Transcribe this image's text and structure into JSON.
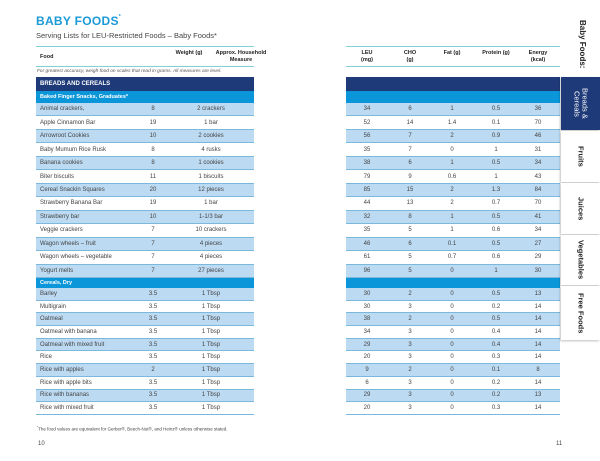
{
  "title": "BABY FOODS",
  "title_sup": "*",
  "subtitle": "Serving Lists for LEU-Restricted Foods – Baby Foods*",
  "headers": {
    "food": "Food",
    "weight": "Weight (g)",
    "measure": "Approx. Household Measure",
    "leu": "LEU (mg)",
    "cho": "CHO (g)",
    "fat": "Fat (g)",
    "protein": "Protein (g)",
    "energy": "Energy (kcal)"
  },
  "note": "For greatest accuracy, weigh food on scales that read in grams. All measures are level.",
  "section": "BREADS AND CEREALS",
  "groups": [
    {
      "name": "Baked Finger Snacks, Graduates*",
      "rows": [
        [
          "Animal crackers,",
          "8",
          "2 crackers",
          "34",
          "6",
          "1",
          "0.5",
          "36"
        ],
        [
          "Apple Cinnamon Bar",
          "19",
          "1 bar",
          "52",
          "14",
          "1.4",
          "0.1",
          "70"
        ],
        [
          "Arrowroot Cookies",
          "10",
          "2 cookies",
          "56",
          "7",
          "2",
          "0.9",
          "46"
        ],
        [
          "Baby Mumum Rice Rusk",
          "8",
          "4 rusks",
          "35",
          "7",
          "0",
          "1",
          "31"
        ],
        [
          "Banana cookies",
          "8",
          "1 cookies",
          "38",
          "6",
          "1",
          "0.5",
          "34"
        ],
        [
          "Biter biscuits",
          "11",
          "1 biscuits",
          "79",
          "9",
          "0.6",
          "1",
          "43"
        ],
        [
          "Cereal Snackin Squares",
          "20",
          "12 pieces",
          "85",
          "15",
          "2",
          "1.3",
          "84"
        ],
        [
          "Strawberry Banana Bar",
          "19",
          "1 bar",
          "44",
          "13",
          "2",
          "0.7",
          "70"
        ],
        [
          "Strawberry bar",
          "10",
          "1-1/3 bar",
          "32",
          "8",
          "1",
          "0.5",
          "41"
        ],
        [
          "Veggie crackers",
          "7",
          "10 crackers",
          "35",
          "5",
          "1",
          "0.6",
          "34"
        ],
        [
          "Wagon wheels – fruit",
          "7",
          "4 pieces",
          "46",
          "6",
          "0.1",
          "0.5",
          "27"
        ],
        [
          "Wagon wheels – vegetable",
          "7",
          "4 pieces",
          "61",
          "5",
          "0.7",
          "0.6",
          "29"
        ],
        [
          "Yogurt melts",
          "7",
          "27 pieces",
          "96",
          "5",
          "0",
          "1",
          "30"
        ]
      ]
    },
    {
      "name": "Cereals, Dry",
      "rows": [
        [
          "Barley",
          "3.5",
          "1 Tbsp",
          "30",
          "2",
          "0",
          "0.5",
          "13"
        ],
        [
          "Multigrain",
          "3.5",
          "1 Tbsp",
          "30",
          "3",
          "0",
          "0.2",
          "14"
        ],
        [
          "Oatmeal",
          "3.5",
          "1 Tbsp",
          "38",
          "2",
          "0",
          "0.5",
          "14"
        ],
        [
          "Oatmeal with banana",
          "3.5",
          "1 Tbsp",
          "34",
          "3",
          "0",
          "0.4",
          "14"
        ],
        [
          "Oatmeal with mixed fruit",
          "3.5",
          "1 Tbsp",
          "29",
          "3",
          "0",
          "0.4",
          "14"
        ],
        [
          "Rice",
          "3.5",
          "1 Tbsp",
          "20",
          "3",
          "0",
          "0.3",
          "14"
        ],
        [
          "Rice with apples",
          "2",
          "1 Tbsp",
          "9",
          "2",
          "0",
          "0.1",
          "8"
        ],
        [
          "Rice with apple bits",
          "3.5",
          "1 Tbsp",
          "6",
          "3",
          "0",
          "0.2",
          "14"
        ],
        [
          "Rice with bananas",
          "3.5",
          "1 Tbsp",
          "29",
          "3",
          "0",
          "0.2",
          "13"
        ],
        [
          "Rice with mixed fruit",
          "3.5",
          "1 Tbsp",
          "20",
          "3",
          "0",
          "0.3",
          "14"
        ]
      ]
    }
  ],
  "footnote": "The food values are equivalent for Gerber®, Beech-Nut®, and Heinz® unless otherwise stated.",
  "footnote_sup": "*",
  "page_left": "10",
  "page_right": "11",
  "side_label": "Baby Foods:",
  "tabs": [
    {
      "label": "Breads & Cereals",
      "active": true
    },
    {
      "label": "Fruits",
      "active": false
    },
    {
      "label": "Juices",
      "active": false
    },
    {
      "label": "Vegetables",
      "active": false
    },
    {
      "label": "Free Foods",
      "active": false
    }
  ],
  "colors": {
    "title": "#1a9ad6",
    "navy": "#1e3a78",
    "blue": "#0a96d8",
    "row_alt": "#bcdaf2"
  }
}
